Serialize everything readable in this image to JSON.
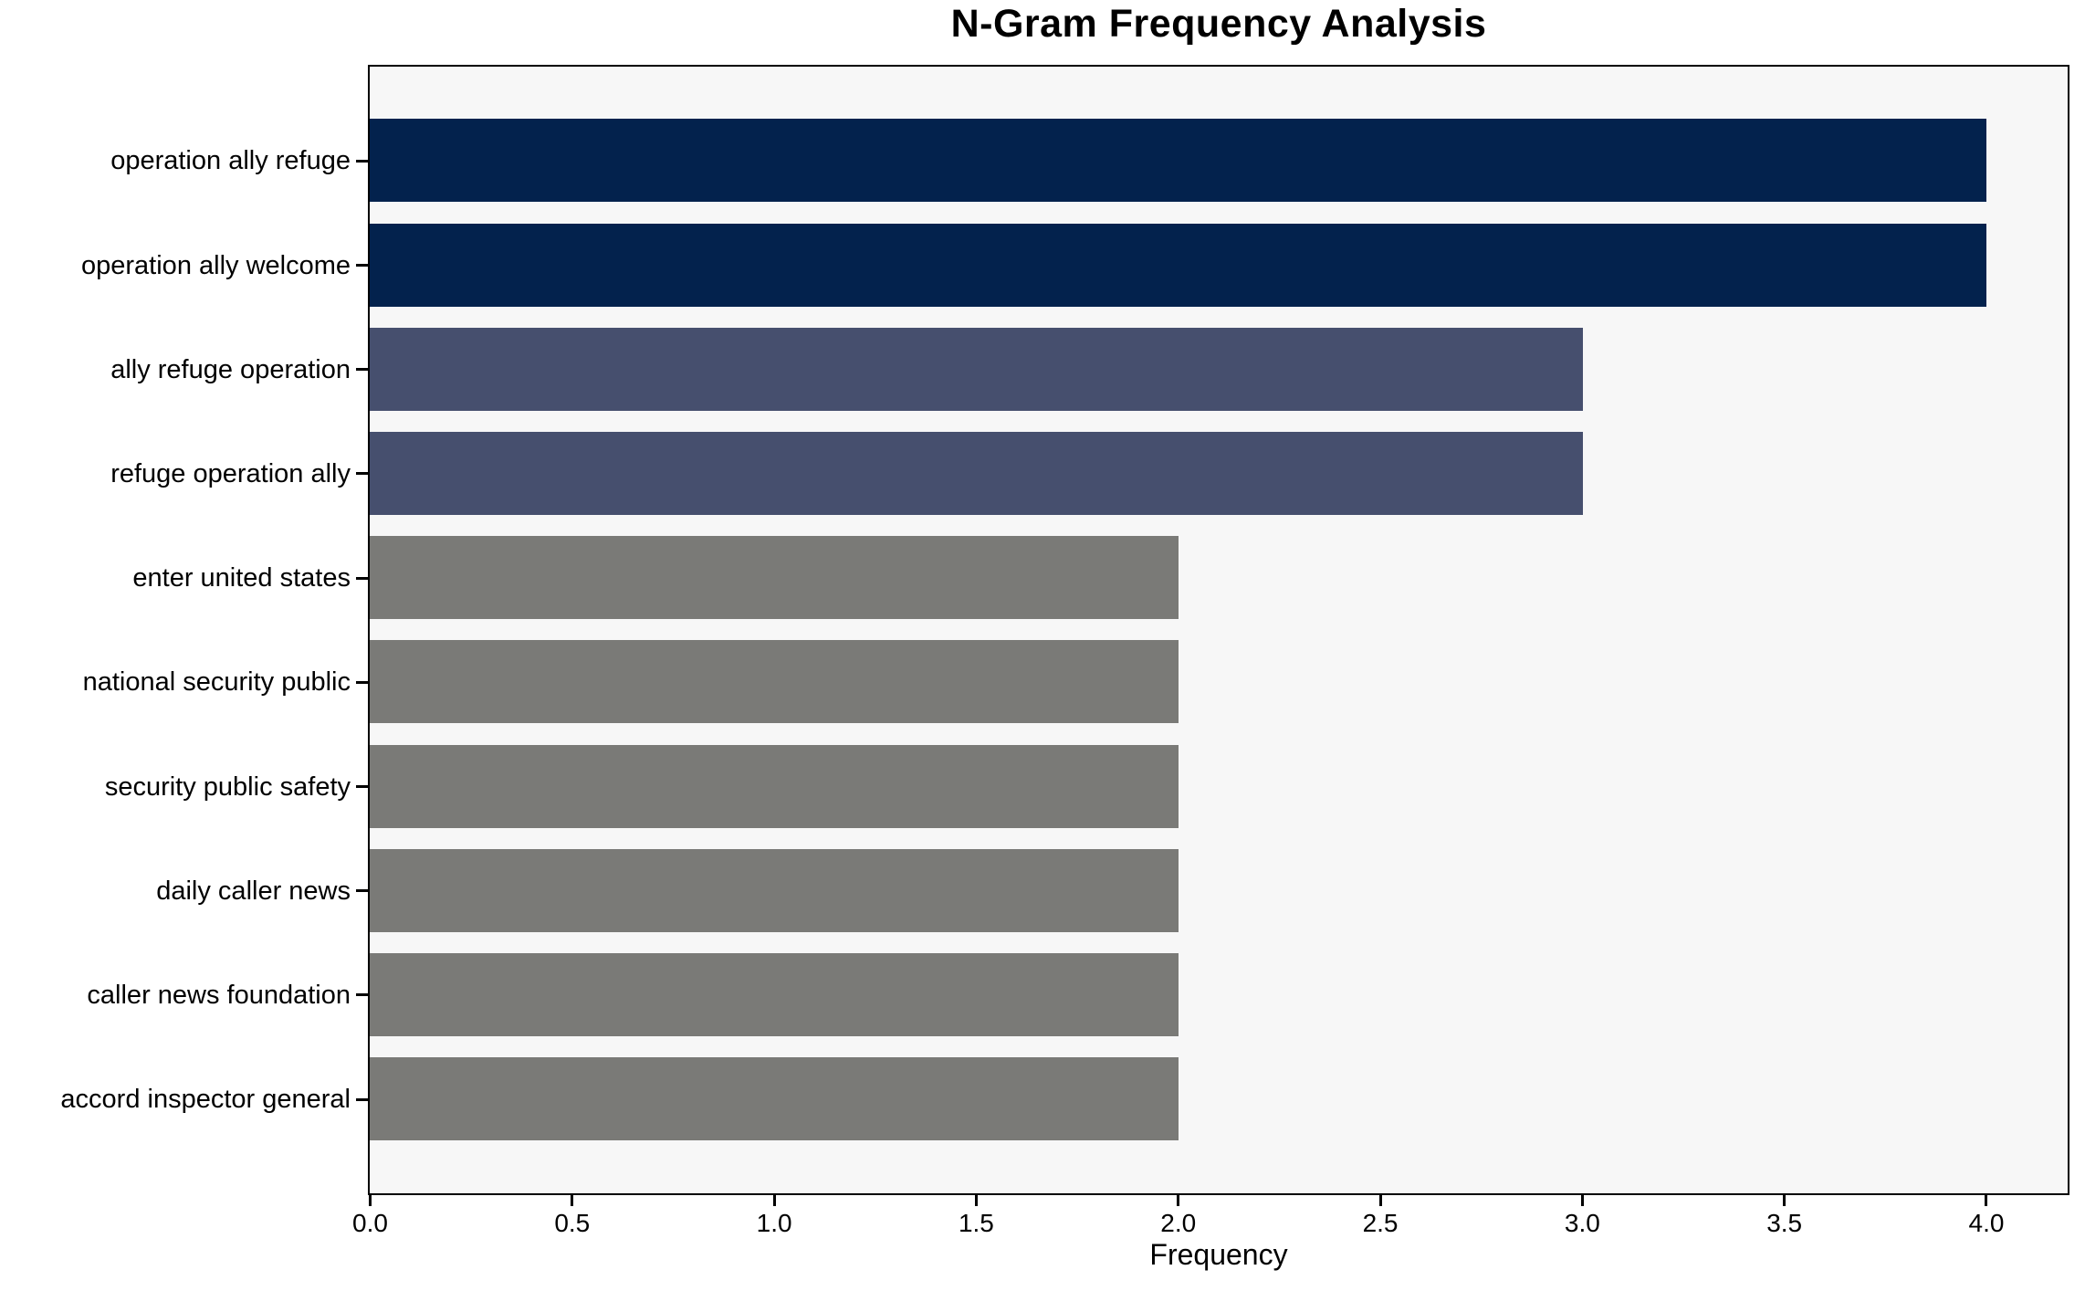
{
  "chart_data": {
    "type": "bar",
    "orientation": "horizontal",
    "title": "N-Gram Frequency Analysis",
    "xlabel": "Frequency",
    "ylabel": "",
    "categories": [
      "operation ally refuge",
      "operation ally welcome",
      "ally refuge operation",
      "refuge operation ally",
      "enter united states",
      "national security public",
      "security public safety",
      "daily caller news",
      "caller news foundation",
      "accord inspector general"
    ],
    "values": [
      4,
      4,
      3,
      3,
      2,
      2,
      2,
      2,
      2,
      2
    ],
    "bar_colors": [
      "#03224d",
      "#03224d",
      "#464f6e",
      "#464f6e",
      "#7a7a77",
      "#7a7a77",
      "#7a7a77",
      "#7a7a77",
      "#7a7a77",
      "#7a7a77"
    ],
    "xticks": [
      "0.0",
      "0.5",
      "1.0",
      "1.5",
      "2.0",
      "2.5",
      "3.0",
      "3.5",
      "4.0"
    ],
    "xtick_values": [
      0,
      0.5,
      1,
      1.5,
      2,
      2.5,
      3,
      3.5,
      4
    ],
    "xlim": [
      0,
      4.2
    ],
    "grid": false,
    "legend": "none",
    "colors": {
      "figure_bg": "#ffffff",
      "plot_bg": "#f7f7f7",
      "spine": "#000000",
      "bar_freq4": "#03224d",
      "bar_freq3": "#464f6e",
      "bar_freq2": "#7a7a77"
    }
  }
}
